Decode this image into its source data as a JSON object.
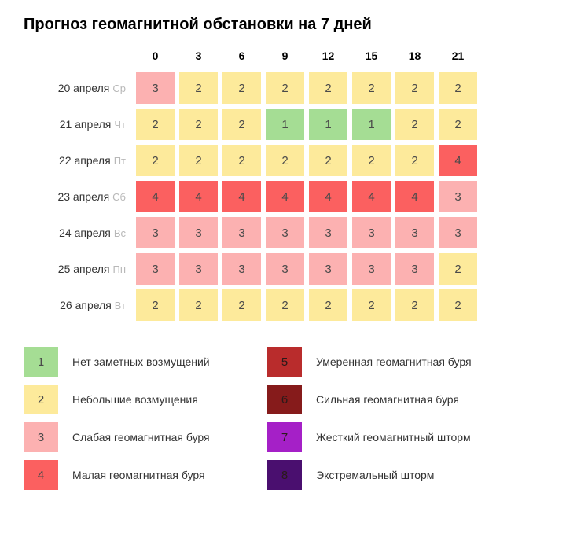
{
  "title": "Прогноз геомагнитной обстановки на 7 дней",
  "hours": [
    "0",
    "3",
    "6",
    "9",
    "12",
    "15",
    "18",
    "21"
  ],
  "level_colors": {
    "1": "#a5dd94",
    "2": "#fdea9b",
    "3": "#fcb1b1",
    "4": "#fb6060",
    "5": "#b92c2c",
    "6": "#861b1b",
    "7": "#a520c7",
    "8": "#4a0f6f"
  },
  "rows": [
    {
      "date": "20 апреля",
      "dow": "Ср",
      "values": [
        3,
        2,
        2,
        2,
        2,
        2,
        2,
        2
      ]
    },
    {
      "date": "21 апреля",
      "dow": "Чт",
      "values": [
        2,
        2,
        2,
        1,
        1,
        1,
        2,
        2
      ]
    },
    {
      "date": "22 апреля",
      "dow": "Пт",
      "values": [
        2,
        2,
        2,
        2,
        2,
        2,
        2,
        4
      ]
    },
    {
      "date": "23 апреля",
      "dow": "Сб",
      "values": [
        4,
        4,
        4,
        4,
        4,
        4,
        4,
        3
      ]
    },
    {
      "date": "24 апреля",
      "dow": "Вс",
      "values": [
        3,
        3,
        3,
        3,
        3,
        3,
        3,
        3
      ]
    },
    {
      "date": "25 апреля",
      "dow": "Пн",
      "values": [
        3,
        3,
        3,
        3,
        3,
        3,
        3,
        2
      ]
    },
    {
      "date": "26 апреля",
      "dow": "Вт",
      "values": [
        2,
        2,
        2,
        2,
        2,
        2,
        2,
        2
      ]
    }
  ],
  "legend": [
    {
      "level": 1,
      "label": "Нет заметных возмущений",
      "text_shade": "light"
    },
    {
      "level": 5,
      "label": "Умеренная геомагнитная буря",
      "text_shade": "dark"
    },
    {
      "level": 2,
      "label": "Небольшие возмущения",
      "text_shade": "light"
    },
    {
      "level": 6,
      "label": "Сильная геомагнитная буря",
      "text_shade": "dark"
    },
    {
      "level": 3,
      "label": "Слабая геомагнитная буря",
      "text_shade": "light"
    },
    {
      "level": 7,
      "label": "Жесткий геомагнитный шторм",
      "text_shade": "dark"
    },
    {
      "level": 4,
      "label": "Малая геомагнитная буря",
      "text_shade": "light"
    },
    {
      "level": 8,
      "label": "Экстремальный шторм",
      "text_shade": "dark"
    }
  ]
}
